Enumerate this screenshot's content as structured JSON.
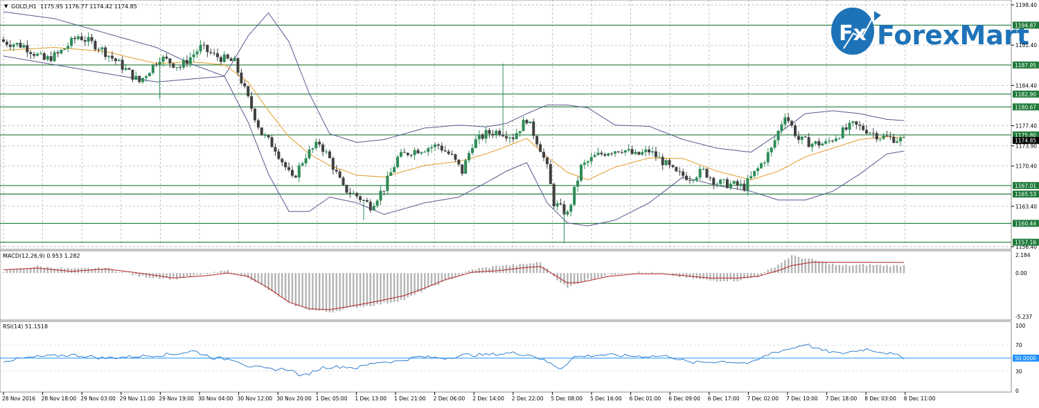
{
  "chart_data": [
    {
      "type": "candlestick",
      "title": "GOLD,H1",
      "header_values": [
        "1175.95",
        "1176.77",
        "1174.42",
        "1174.85"
      ],
      "current_price": 1174.85,
      "ylim": [
        1156.4,
        1198.4
      ],
      "y_ticks": [
        "1198.40",
        "1191.40",
        "1184.40",
        "1177.40",
        "1173.90",
        "1170.40",
        "1163.40",
        "1156.40"
      ],
      "horizontal_levels": [
        {
          "label": "1194.87",
          "value": 1194.87
        },
        {
          "label": "1187.95",
          "value": 1187.95
        },
        {
          "label": "1182.90",
          "value": 1182.9
        },
        {
          "label": "1180.67",
          "value": 1180.67
        },
        {
          "label": "1175.80",
          "value": 1175.8
        },
        {
          "label": "1167.01",
          "value": 1167.01
        },
        {
          "label": "1165.53",
          "value": 1165.53
        },
        {
          "label": "1160.44",
          "value": 1160.44
        },
        {
          "label": "1157.16",
          "value": 1157.16
        }
      ],
      "x_labels": [
        "28 Nov 2016",
        "28 Nov 18:00",
        "29 Nov 03:00",
        "29 Nov 11:00",
        "29 Nov 19:00",
        "30 Nov 04:00",
        "30 Nov 12:00",
        "30 Nov 20:00",
        "1 Dec 05:00",
        "1 Dec 13:00",
        "1 Dec 21:00",
        "2 Dec 06:00",
        "2 Dec 14:00",
        "2 Dec 22:00",
        "5 Dec 08:00",
        "5 Dec 16:00",
        "6 Dec 01:00",
        "6 Dec 09:00",
        "6 Dec 17:00",
        "7 Dec 02:00",
        "7 Dec 10:00",
        "7 Dec 18:00",
        "8 Dec 03:00",
        "8 Dec 11:00"
      ],
      "close_path": [
        [
          0,
          1192.0
        ],
        [
          6,
          1191.3
        ],
        [
          12,
          1188.8
        ],
        [
          16,
          1189.8
        ],
        [
          22,
          1193.0
        ],
        [
          28,
          1191.1
        ],
        [
          34,
          1188.2
        ],
        [
          40,
          1185.0
        ],
        [
          46,
          1189.3
        ],
        [
          52,
          1187.6
        ],
        [
          58,
          1191.0
        ],
        [
          62,
          1189.6
        ],
        [
          68,
          1188.4
        ],
        [
          72,
          1182.0
        ],
        [
          76,
          1176.0
        ],
        [
          80,
          1173.5
        ],
        [
          85,
          1168.0
        ],
        [
          89,
          1172.3
        ],
        [
          93,
          1174.4
        ],
        [
          96,
          1171.6
        ],
        [
          100,
          1166.5
        ],
        [
          104,
          1165.2
        ],
        [
          108,
          1163.5
        ],
        [
          112,
          1166.6
        ],
        [
          116,
          1171.8
        ],
        [
          120,
          1173.0
        ],
        [
          124,
          1173.5
        ],
        [
          128,
          1174.0
        ],
        [
          132,
          1172.0
        ],
        [
          135,
          1169.4
        ],
        [
          138,
          1174.3
        ],
        [
          142,
          1176.0
        ],
        [
          146,
          1176.5
        ],
        [
          150,
          1175.5
        ],
        [
          154,
          1178.6
        ],
        [
          158,
          1173.5
        ],
        [
          160,
          1170.0
        ],
        [
          162,
          1164.0
        ],
        [
          166,
          1162.0
        ],
        [
          170,
          1170.2
        ],
        [
          174,
          1172.0
        ],
        [
          178,
          1173.0
        ],
        [
          182,
          1173.4
        ],
        [
          186,
          1172.2
        ],
        [
          190,
          1173.0
        ],
        [
          194,
          1171.2
        ],
        [
          198,
          1169.0
        ],
        [
          202,
          1168.5
        ],
        [
          206,
          1169.5
        ],
        [
          210,
          1167.5
        ],
        [
          214,
          1167.2
        ],
        [
          218,
          1166.8
        ],
        [
          222,
          1169.9
        ],
        [
          226,
          1173.3
        ],
        [
          230,
          1179.5
        ],
        [
          234,
          1175.0
        ],
        [
          238,
          1174.3
        ],
        [
          242,
          1174.3
        ],
        [
          246,
          1176.0
        ],
        [
          250,
          1177.5
        ],
        [
          254,
          1176.7
        ],
        [
          258,
          1175.5
        ],
        [
          262,
          1175.2
        ],
        [
          265,
          1174.85
        ]
      ],
      "bb_upper_path": [
        [
          0,
          1197.2
        ],
        [
          15,
          1196.0
        ],
        [
          30,
          1193.5
        ],
        [
          45,
          1191.0
        ],
        [
          55,
          1188.2
        ],
        [
          65,
          1186.0
        ],
        [
          72,
          1193.0
        ],
        [
          78,
          1197.0
        ],
        [
          84,
          1192.0
        ],
        [
          90,
          1183.0
        ],
        [
          96,
          1176.0
        ],
        [
          104,
          1174.5
        ],
        [
          112,
          1175.0
        ],
        [
          124,
          1177.0
        ],
        [
          134,
          1177.5
        ],
        [
          142,
          1177.2
        ],
        [
          148,
          1177.8
        ],
        [
          154,
          1179.5
        ],
        [
          160,
          1181.0
        ],
        [
          166,
          1181.0
        ],
        [
          172,
          1180.5
        ],
        [
          180,
          1177.5
        ],
        [
          190,
          1177.3
        ],
        [
          200,
          1175.0
        ],
        [
          210,
          1173.5
        ],
        [
          220,
          1172.8
        ],
        [
          228,
          1176.0
        ],
        [
          236,
          1179.5
        ],
        [
          244,
          1180.0
        ],
        [
          252,
          1179.5
        ],
        [
          260,
          1178.5
        ],
        [
          265,
          1178.3
        ]
      ],
      "bb_middle_path": [
        [
          0,
          1190.5
        ],
        [
          15,
          1191.0
        ],
        [
          30,
          1190.3
        ],
        [
          45,
          1188.2
        ],
        [
          55,
          1188.5
        ],
        [
          65,
          1188.0
        ],
        [
          72,
          1185.0
        ],
        [
          78,
          1180.0
        ],
        [
          84,
          1175.5
        ],
        [
          90,
          1172.5
        ],
        [
          96,
          1170.5
        ],
        [
          104,
          1168.8
        ],
        [
          112,
          1168.5
        ],
        [
          124,
          1170.5
        ],
        [
          134,
          1171.2
        ],
        [
          142,
          1172.5
        ],
        [
          148,
          1173.8
        ],
        [
          154,
          1175.2
        ],
        [
          160,
          1172.0
        ],
        [
          166,
          1169.3
        ],
        [
          172,
          1168.0
        ],
        [
          180,
          1170.2
        ],
        [
          190,
          1171.8
        ],
        [
          200,
          1171.7
        ],
        [
          210,
          1169.5
        ],
        [
          220,
          1168.0
        ],
        [
          228,
          1169.5
        ],
        [
          236,
          1172.0
        ],
        [
          244,
          1173.5
        ],
        [
          252,
          1175.0
        ],
        [
          260,
          1175.5
        ],
        [
          265,
          1175.3
        ]
      ],
      "bb_lower_path": [
        [
          0,
          1189.5
        ],
        [
          15,
          1188.0
        ],
        [
          30,
          1186.5
        ],
        [
          45,
          1185.0
        ],
        [
          55,
          1185.5
        ],
        [
          65,
          1186.0
        ],
        [
          72,
          1178.0
        ],
        [
          78,
          1169.0
        ],
        [
          84,
          1162.5
        ],
        [
          90,
          1162.5
        ],
        [
          96,
          1165.0
        ],
        [
          104,
          1164.0
        ],
        [
          112,
          1162.0
        ],
        [
          124,
          1164.0
        ],
        [
          134,
          1165.0
        ],
        [
          142,
          1167.5
        ],
        [
          148,
          1169.5
        ],
        [
          154,
          1171.0
        ],
        [
          160,
          1164.0
        ],
        [
          166,
          1160.5
        ],
        [
          172,
          1160.0
        ],
        [
          180,
          1161.0
        ],
        [
          190,
          1164.0
        ],
        [
          200,
          1168.5
        ],
        [
          210,
          1167.0
        ],
        [
          220,
          1166.0
        ],
        [
          228,
          1164.5
        ],
        [
          236,
          1164.5
        ],
        [
          244,
          1166.0
        ],
        [
          252,
          1169.0
        ],
        [
          260,
          1172.5
        ],
        [
          265,
          1173.0
        ]
      ]
    },
    {
      "type": "bar",
      "title": "MACD(12,26,9) 0.953 1.282",
      "ylim": [
        -5.237,
        2.184
      ],
      "y_ticks": [
        "2.184",
        "0.00",
        "-5.237"
      ],
      "histogram_path": [
        [
          0,
          0.2
        ],
        [
          10,
          0.8
        ],
        [
          20,
          0.5
        ],
        [
          30,
          0.6
        ],
        [
          40,
          -0.4
        ],
        [
          50,
          -0.7
        ],
        [
          60,
          -0.1
        ],
        [
          66,
          0.3
        ],
        [
          72,
          -0.5
        ],
        [
          78,
          -2.0
        ],
        [
          84,
          -3.6
        ],
        [
          90,
          -4.4
        ],
        [
          96,
          -4.7
        ],
        [
          102,
          -4.2
        ],
        [
          110,
          -3.8
        ],
        [
          118,
          -3.2
        ],
        [
          124,
          -2.0
        ],
        [
          130,
          -1.0
        ],
        [
          138,
          0.4
        ],
        [
          146,
          0.9
        ],
        [
          152,
          1.0
        ],
        [
          158,
          1.3
        ],
        [
          162,
          -0.4
        ],
        [
          166,
          -1.8
        ],
        [
          170,
          -1.0
        ],
        [
          178,
          -0.2
        ],
        [
          186,
          0.1
        ],
        [
          194,
          0.0
        ],
        [
          200,
          -0.5
        ],
        [
          208,
          -0.9
        ],
        [
          216,
          -0.9
        ],
        [
          222,
          -0.4
        ],
        [
          228,
          1.0
        ],
        [
          232,
          2.1
        ],
        [
          238,
          1.6
        ],
        [
          246,
          0.9
        ],
        [
          254,
          1.0
        ],
        [
          262,
          0.9
        ],
        [
          265,
          0.95
        ]
      ],
      "signal_path": [
        [
          0,
          0.4
        ],
        [
          10,
          0.6
        ],
        [
          20,
          0.2
        ],
        [
          30,
          0.5
        ],
        [
          40,
          0.0
        ],
        [
          50,
          -0.6
        ],
        [
          60,
          -0.3
        ],
        [
          66,
          0.0
        ],
        [
          72,
          -0.4
        ],
        [
          78,
          -1.8
        ],
        [
          84,
          -3.5
        ],
        [
          90,
          -4.3
        ],
        [
          96,
          -4.4
        ],
        [
          102,
          -4.0
        ],
        [
          110,
          -3.4
        ],
        [
          118,
          -2.7
        ],
        [
          124,
          -1.8
        ],
        [
          130,
          -0.8
        ],
        [
          138,
          0.1
        ],
        [
          146,
          0.3
        ],
        [
          152,
          0.6
        ],
        [
          158,
          0.8
        ],
        [
          162,
          -0.2
        ],
        [
          166,
          -1.2
        ],
        [
          170,
          -1.1
        ],
        [
          178,
          -0.4
        ],
        [
          186,
          -0.1
        ],
        [
          194,
          -0.1
        ],
        [
          200,
          -0.3
        ],
        [
          208,
          -0.6
        ],
        [
          216,
          -0.6
        ],
        [
          222,
          -0.4
        ],
        [
          228,
          0.3
        ],
        [
          232,
          0.9
        ],
        [
          238,
          1.3
        ],
        [
          246,
          1.3
        ],
        [
          254,
          1.3
        ],
        [
          262,
          1.28
        ],
        [
          265,
          1.282
        ]
      ]
    },
    {
      "type": "line",
      "title": "RSI(14) 51.1518",
      "ylim": [
        0,
        100
      ],
      "y_ticks": [
        "100",
        "70",
        "50.0000",
        "30",
        "0"
      ],
      "level": 50,
      "values_path": [
        [
          0,
          46
        ],
        [
          10,
          52
        ],
        [
          20,
          55
        ],
        [
          30,
          50
        ],
        [
          40,
          53
        ],
        [
          50,
          56
        ],
        [
          56,
          61
        ],
        [
          62,
          50
        ],
        [
          68,
          48
        ],
        [
          72,
          38
        ],
        [
          78,
          33
        ],
        [
          84,
          33
        ],
        [
          88,
          22
        ],
        [
          94,
          36
        ],
        [
          100,
          37
        ],
        [
          104,
          35
        ],
        [
          110,
          44
        ],
        [
          116,
          45
        ],
        [
          122,
          52
        ],
        [
          130,
          50
        ],
        [
          136,
          55
        ],
        [
          142,
          55
        ],
        [
          150,
          58
        ],
        [
          156,
          54
        ],
        [
          160,
          44
        ],
        [
          164,
          34
        ],
        [
          168,
          52
        ],
        [
          176,
          55
        ],
        [
          186,
          53
        ],
        [
          196,
          53
        ],
        [
          202,
          43
        ],
        [
          212,
          45
        ],
        [
          220,
          42
        ],
        [
          226,
          58
        ],
        [
          232,
          65
        ],
        [
          236,
          72
        ],
        [
          240,
          63
        ],
        [
          246,
          57
        ],
        [
          254,
          64
        ],
        [
          260,
          58
        ],
        [
          265,
          51
        ]
      ]
    }
  ]
}
